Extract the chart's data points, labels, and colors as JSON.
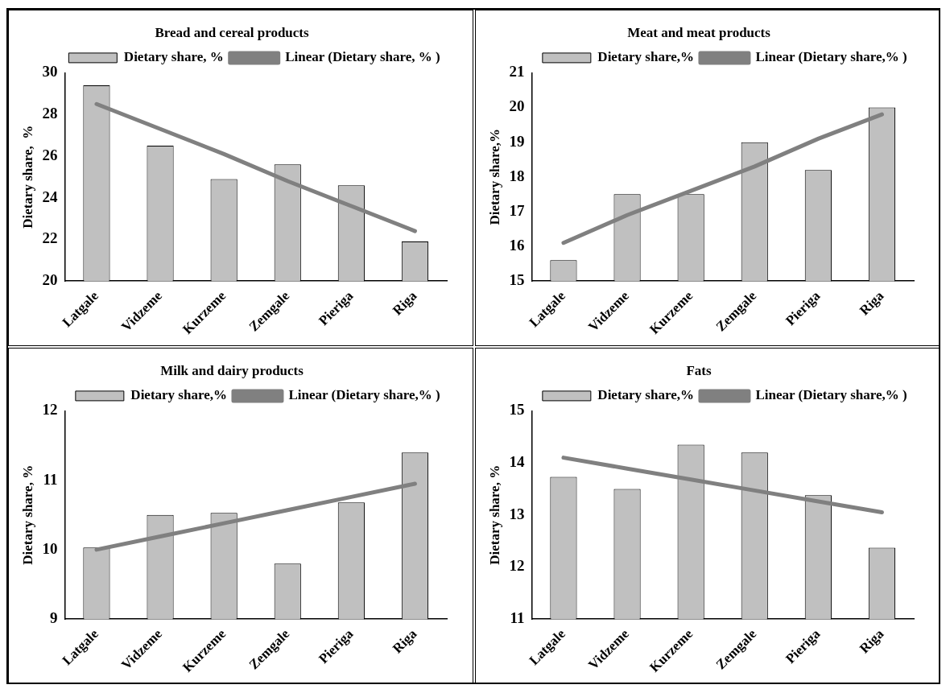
{
  "chart_data": [
    {
      "type": "bar",
      "title": "Bread and cereal products",
      "ylabel": "Dietary share,  %",
      "categories": [
        "Latgale",
        "Vidzeme",
        "Kurzeme",
        "Zemgale",
        "Pieriga",
        "Riga"
      ],
      "series": [
        {
          "name": "Dietary share, %",
          "color": "#c0c0c0",
          "values": [
            29.4,
            26.5,
            24.9,
            25.6,
            24.6,
            21.9
          ]
        },
        {
          "name": "Linear (Dietary share, % )",
          "type": "line",
          "color": "#808080",
          "values": [
            28.5,
            27.3,
            26.1,
            24.8,
            23.6,
            22.4
          ]
        }
      ],
      "ylim": [
        20,
        30
      ],
      "yticks": [
        20,
        22,
        24,
        26,
        28,
        30
      ],
      "grid": false,
      "legend": "top right"
    },
    {
      "type": "bar",
      "title": "Meat and meat products",
      "ylabel": "Dietary share,%",
      "categories": [
        "Latgale",
        "Vidzeme",
        "Kurzeme",
        "Zemgale",
        "Pieriga",
        "Riga"
      ],
      "series": [
        {
          "name": "Dietary share,%",
          "color": "#c0c0c0",
          "values": [
            15.6,
            17.5,
            17.5,
            19.0,
            18.2,
            20.0
          ]
        },
        {
          "name": "Linear (Dietary share,% )",
          "type": "line",
          "color": "#808080",
          "values": [
            16.1,
            16.9,
            17.6,
            18.3,
            19.1,
            19.8
          ]
        }
      ],
      "ylim": [
        15,
        21
      ],
      "yticks": [
        15,
        16,
        17,
        18,
        19,
        20,
        21
      ],
      "grid": false,
      "legend": "top right"
    },
    {
      "type": "bar",
      "title": "Milk and dairy products",
      "ylabel": "Dietary share, %",
      "categories": [
        "Latgale",
        "Vidzeme",
        "Kurzeme",
        "Zemgale",
        "Pieriga",
        "Riga"
      ],
      "series": [
        {
          "name": "Dietary share,%",
          "color": "#c0c0c0",
          "values": [
            10.03,
            10.5,
            10.53,
            9.8,
            10.68,
            11.4
          ]
        },
        {
          "name": "Linear (Dietary share,% )",
          "type": "line",
          "color": "#808080",
          "values": [
            10.0,
            10.19,
            10.38,
            10.57,
            10.76,
            10.95
          ]
        }
      ],
      "ylim": [
        9,
        12
      ],
      "yticks": [
        9,
        10,
        11,
        12
      ],
      "grid": false,
      "legend": "top right"
    },
    {
      "type": "bar",
      "title": "Fats",
      "ylabel": "Dietary share, %",
      "categories": [
        "Latgale",
        "Vidzeme",
        "Kurzeme",
        "Zemgale",
        "Pieriga",
        "Riga"
      ],
      "series": [
        {
          "name": "Dietary share,%",
          "color": "#c0c0c0",
          "values": [
            13.73,
            13.5,
            14.35,
            14.2,
            13.38,
            12.37
          ]
        },
        {
          "name": "Linear (Dietary share,% )",
          "type": "line",
          "color": "#808080",
          "values": [
            14.1,
            13.89,
            13.68,
            13.47,
            13.26,
            13.05
          ]
        }
      ],
      "ylim": [
        11,
        15
      ],
      "yticks": [
        11,
        12,
        13,
        14,
        15
      ],
      "grid": false,
      "legend": "top right"
    }
  ]
}
